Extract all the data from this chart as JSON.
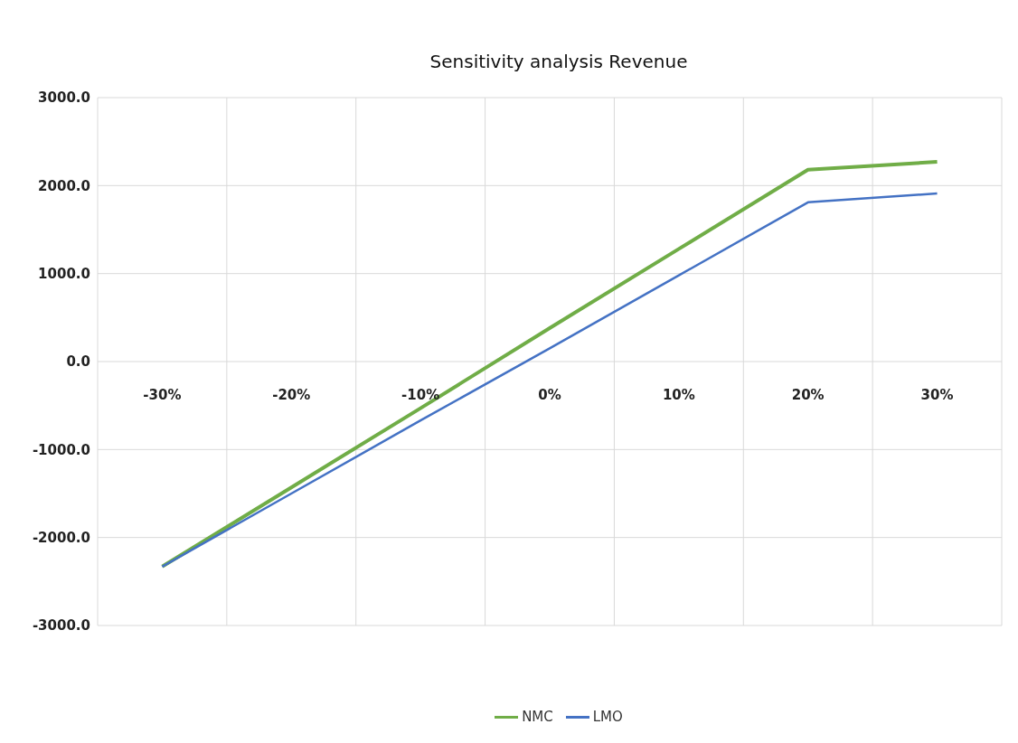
{
  "chart_data": {
    "type": "line",
    "title": "Sensitivity analysis Revenue",
    "categories": [
      "-30%",
      "-20%",
      "-10%",
      "0%",
      "10%",
      "20%",
      "30%"
    ],
    "series": [
      {
        "name": "NMC",
        "color": "#70ad47",
        "values": [
          -2330,
          -1430,
          -530,
          380,
          1280,
          2180,
          2270
        ]
      },
      {
        "name": "LMO",
        "color": "#4472c4",
        "values": [
          -2330,
          -1500,
          -670,
          150,
          980,
          1810,
          1910
        ]
      }
    ],
    "ylim": [
      -3000,
      3000
    ],
    "yticks": [
      {
        "value": -3000,
        "label": "-3000.0"
      },
      {
        "value": -2000,
        "label": "-2000.0"
      },
      {
        "value": -1000,
        "label": "-1000.0"
      },
      {
        "value": 0,
        "label": "0.0"
      },
      {
        "value": 1000,
        "label": "1000.0"
      },
      {
        "value": 2000,
        "label": "2000.0"
      },
      {
        "value": 3000,
        "label": "3000.0"
      }
    ],
    "grid": true,
    "legend": "bottom",
    "marker": "none",
    "line_style": "solid"
  }
}
